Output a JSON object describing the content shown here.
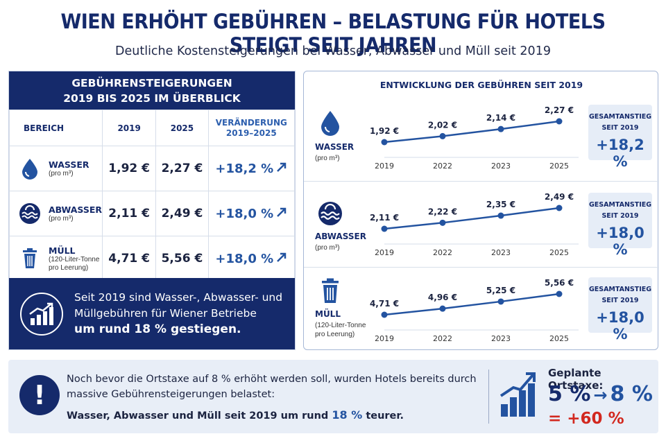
{
  "title": "WIEN ERHÖHT GEBÜHREN – BELASTUNG FÜR HOTELS STEIGT SEIT JAHREN",
  "subtitle": "Deutliche Kostensteigerungen bei Wasser, Abwasser und Müll seit 2019",
  "table": {
    "heading_line1": "GEBÜHRENSTEIGERUNGEN",
    "heading_line2": "2019 BIS 2025 IM ÜBERBLICK",
    "col_area": "BEREICH",
    "col_2019": "2019",
    "col_2025": "2025",
    "col_change_line1": "VERÄNDERUNG",
    "col_change_line2": "2019–2025",
    "rows": [
      {
        "name": "WASSER",
        "unit": "(pro m³)",
        "unit2": "",
        "v2019": "1,92 €",
        "v2025": "2,27 €",
        "change": "+18,2 %",
        "icon": "water-drop-icon"
      },
      {
        "name": "ABWASSER",
        "unit": "(pro m³)",
        "unit2": "",
        "v2019": "2,11 €",
        "v2025": "2,49 €",
        "change": "+18,0 %",
        "icon": "wastewater-icon"
      },
      {
        "name": "MÜLL",
        "unit": "(120-Liter-Tonne",
        "unit2": "pro Leerung)",
        "v2019": "4,71 €",
        "v2025": "5,56 €",
        "change": "+18,0 %",
        "icon": "trash-bin-icon"
      }
    ],
    "footer_line1": "Seit 2019 sind Wasser-, Abwasser- und",
    "footer_line2": "Müllgebühren für Wiener Betriebe",
    "footer_bold": "um rund 18 % gestiegen."
  },
  "chart_panel": {
    "title": "ENTWICKLUNG DER GEBÜHREN SEIT 2019",
    "total_label_line1": "GESAMTANSTIEG",
    "total_label_line2": "SEIT 2019",
    "rows": [
      {
        "name": "WASSER",
        "unit": "(pro m³)",
        "unit2": "",
        "total": "+18,2 %"
      },
      {
        "name": "ABWASSER",
        "unit": "(pro m³)",
        "unit2": "",
        "total": "+18,0 %"
      },
      {
        "name": "MÜLL",
        "unit": "(120-Liter-Tonne",
        "unit2": "pro Leerung)",
        "total": "+18,0 %"
      }
    ]
  },
  "chart_data": [
    {
      "type": "line",
      "x": [
        "2019",
        "2022",
        "2023",
        "2025"
      ],
      "values": [
        1.92,
        2.02,
        2.14,
        2.27
      ],
      "labels": [
        "1,92 €",
        "2,02 €",
        "2,14 €",
        "2,27 €"
      ]
    },
    {
      "type": "line",
      "x": [
        "2019",
        "2022",
        "2023",
        "2025"
      ],
      "values": [
        2.11,
        2.22,
        2.35,
        2.49
      ],
      "labels": [
        "2,11 €",
        "2,22 €",
        "2,35 €",
        "2,49 €"
      ]
    },
    {
      "type": "line",
      "x": [
        "2019",
        "2022",
        "2023",
        "2025"
      ],
      "values": [
        4.71,
        4.96,
        5.25,
        5.56
      ],
      "labels": [
        "4,71 €",
        "4,96 €",
        "5,25 €",
        "5,56 €"
      ]
    }
  ],
  "bottom": {
    "line1": "Noch bevor die Ortstaxe auf 8 % erhöht werden soll, wurden Hotels bereits durch",
    "line2": "massive Gebührensteigerungen belastet:",
    "bold_prefix": "Wasser, Abwasser und Müll seit 2019 um rund",
    "bold_highlight": "18 %",
    "bold_suffix": "teurer.",
    "tax_label": "Geplante Ortstaxe:",
    "tax_from": "5 %",
    "tax_arrow": "→",
    "tax_to": "8 %",
    "tax_increase": "= +60 %"
  },
  "colors": {
    "navy": "#152a6b",
    "blue": "#2353a0",
    "red": "#d2281f",
    "panel": "#e6edf7"
  }
}
